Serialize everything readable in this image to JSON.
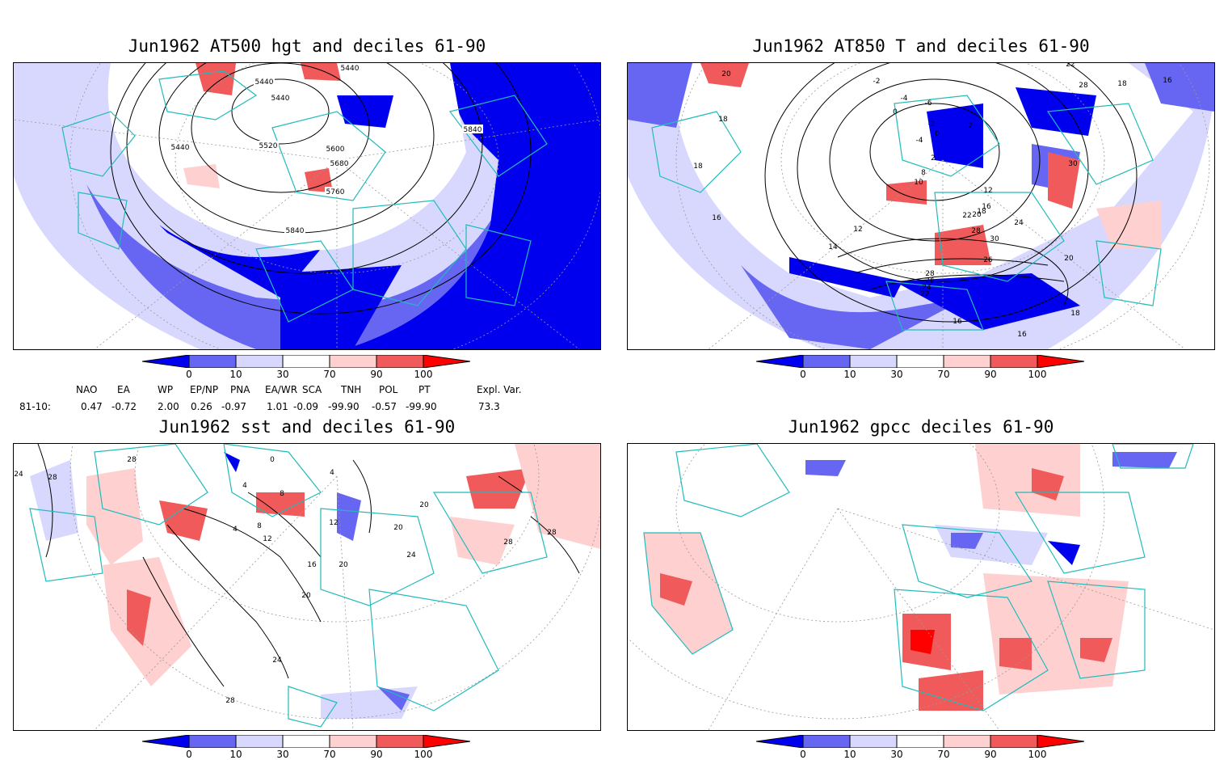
{
  "panels": [
    {
      "title": "Jun1962 AT500 hgt and deciles 61-90",
      "contour_labels": [
        "5440",
        "5440",
        "5440",
        "5440",
        "5520",
        "5600",
        "5680",
        "5760",
        "5840",
        "5840"
      ]
    },
    {
      "title": "Jun1962 AT850 T and deciles 61-90",
      "contour_labels": [
        "20",
        "18",
        "18",
        "16",
        "-2",
        "-4",
        "-6",
        "0",
        "2",
        "-4",
        "-2",
        "0",
        "2",
        "8",
        "10",
        "12",
        "14",
        "12",
        "16",
        "18",
        "20",
        "22",
        "24",
        "26",
        "28",
        "30",
        "30",
        "28",
        "26",
        "24",
        "22",
        "16",
        "18",
        "16",
        "16",
        "18",
        "22",
        "28",
        "20"
      ]
    },
    {
      "title": "Jun1962 sst and deciles 61-90",
      "contour_labels": [
        "24",
        "28",
        "28",
        "0",
        "4",
        "4",
        "8",
        "12",
        "4",
        "8",
        "12",
        "16",
        "20",
        "24",
        "28",
        "20",
        "24",
        "20",
        "20",
        "28",
        "28"
      ]
    },
    {
      "title": "Jun1962 gpcc deciles 61-90",
      "contour_labels": []
    }
  ],
  "colorbar": {
    "ticks": [
      "0",
      "10",
      "30",
      "70",
      "90",
      "100"
    ],
    "colors": [
      "#0000ee",
      "#6666f2",
      "#d8d8ff",
      "#ffffff",
      "#ffd0d0",
      "#f05a5a",
      "#ff0000"
    ]
  },
  "indices": {
    "row_label": "81-10:",
    "headers": [
      "NAO",
      "EA",
      "WP",
      "EP/NP",
      "PNA",
      "EA/WR",
      "SCA",
      "TNH",
      "POL",
      "PT",
      "Expl. Var."
    ],
    "values": [
      "0.47",
      "-0.72",
      "2.00",
      "0.26",
      "-0.97",
      "1.01",
      "-0.09",
      "-99.90",
      "-0.57",
      "-99.90",
      "73.3"
    ]
  },
  "colors": {
    "coast": "#22bbbb",
    "contour": "#000000",
    "grid": "#999999"
  }
}
